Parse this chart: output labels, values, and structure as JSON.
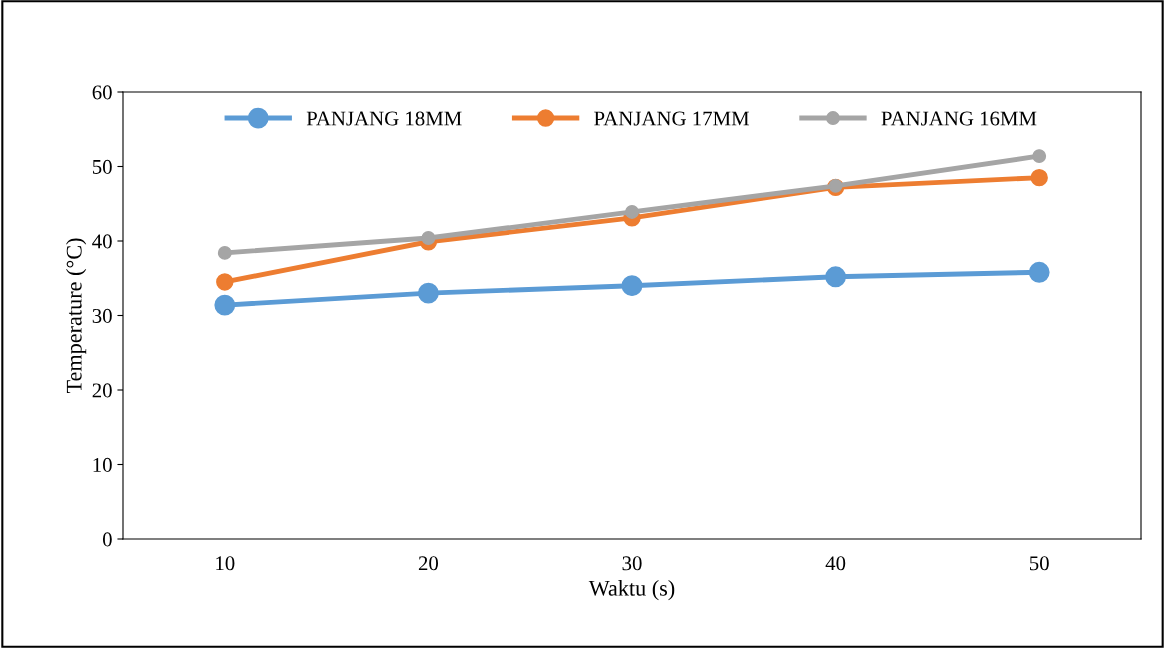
{
  "chart_data": {
    "type": "line",
    "xlabel": "Waktu (s)",
    "ylabel": "Temperature (°C)",
    "categories": [
      "10",
      "20",
      "30",
      "40",
      "50"
    ],
    "series": [
      {
        "name": "PANJANG 18MM",
        "color": "#5b9bd5",
        "values": [
          31.4,
          33.0,
          34.0,
          35.2,
          35.8
        ]
      },
      {
        "name": "PANJANG 17MM",
        "color": "#ed7d31",
        "values": [
          34.5,
          39.9,
          43.1,
          47.2,
          48.5
        ]
      },
      {
        "name": "PANJANG 16MM",
        "color": "#a5a5a5",
        "values": [
          38.4,
          40.4,
          43.9,
          47.4,
          51.4
        ]
      }
    ],
    "ylim": [
      0,
      60
    ],
    "yticks": [
      0,
      10,
      20,
      30,
      40,
      50,
      60
    ],
    "grid": false,
    "legend": "top",
    "marker": "circle",
    "line_style": "solid"
  }
}
